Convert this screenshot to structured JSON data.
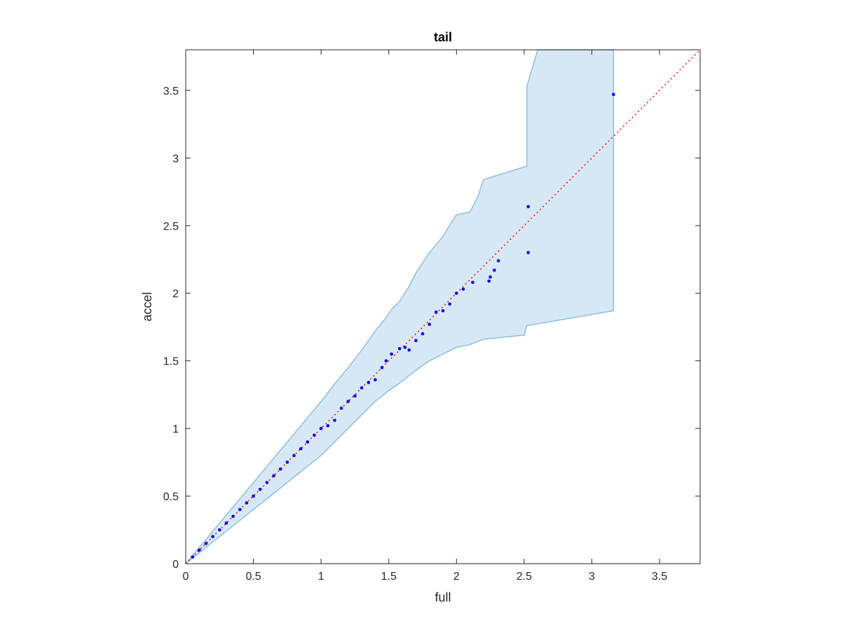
{
  "chart_data": {
    "type": "scatter",
    "title": "tail",
    "xlabel": "full",
    "ylabel": "accel",
    "xlim": [
      0,
      3.8
    ],
    "ylim": [
      0,
      3.8
    ],
    "xticks": [
      0,
      0.5,
      1,
      1.5,
      2,
      2.5,
      3,
      3.5
    ],
    "yticks": [
      0,
      0.5,
      1,
      1.5,
      2,
      2.5,
      3,
      3.5
    ],
    "xtick_labels": [
      "0",
      "0.5",
      "1",
      "1.5",
      "2",
      "2.5",
      "3",
      "3.5"
    ],
    "ytick_labels": [
      "0",
      "0.5",
      "1",
      "1.5",
      "2",
      "2.5",
      "3",
      "3.5"
    ],
    "grid": false,
    "colors": {
      "points": "#0000ff",
      "reference_line": "#ff0000",
      "band_fill": "#d6e8f5",
      "band_edge": "#8ebfdd"
    },
    "reference_line": {
      "x": [
        0,
        3.8
      ],
      "y": [
        0,
        3.8
      ],
      "style": "dotted"
    },
    "band_upper": [
      [
        0,
        0
      ],
      [
        0.1,
        0.12
      ],
      [
        0.2,
        0.24
      ],
      [
        0.3,
        0.36
      ],
      [
        0.4,
        0.48
      ],
      [
        0.5,
        0.6
      ],
      [
        0.6,
        0.72
      ],
      [
        0.7,
        0.84
      ],
      [
        0.8,
        0.96
      ],
      [
        0.9,
        1.08
      ],
      [
        1.0,
        1.2
      ],
      [
        1.1,
        1.33
      ],
      [
        1.2,
        1.45
      ],
      [
        1.3,
        1.58
      ],
      [
        1.4,
        1.72
      ],
      [
        1.48,
        1.82
      ],
      [
        1.52,
        1.88
      ],
      [
        1.58,
        1.94
      ],
      [
        1.65,
        2.05
      ],
      [
        1.7,
        2.15
      ],
      [
        1.8,
        2.3
      ],
      [
        1.9,
        2.42
      ],
      [
        1.96,
        2.52
      ],
      [
        2.0,
        2.58
      ],
      [
        2.1,
        2.6
      ],
      [
        2.16,
        2.72
      ],
      [
        2.2,
        2.84
      ],
      [
        2.52,
        2.94
      ],
      [
        2.52,
        3.53
      ],
      [
        2.6,
        3.8
      ],
      [
        3.16,
        3.8
      ]
    ],
    "band_lower": [
      [
        0,
        0
      ],
      [
        0.1,
        0.08
      ],
      [
        0.2,
        0.16
      ],
      [
        0.3,
        0.24
      ],
      [
        0.4,
        0.32
      ],
      [
        0.5,
        0.4
      ],
      [
        0.6,
        0.48
      ],
      [
        0.7,
        0.56
      ],
      [
        0.8,
        0.64
      ],
      [
        0.9,
        0.72
      ],
      [
        1.0,
        0.8
      ],
      [
        1.1,
        0.9
      ],
      [
        1.2,
        1.0
      ],
      [
        1.3,
        1.1
      ],
      [
        1.4,
        1.2
      ],
      [
        1.5,
        1.28
      ],
      [
        1.6,
        1.35
      ],
      [
        1.7,
        1.43
      ],
      [
        1.8,
        1.5
      ],
      [
        1.9,
        1.55
      ],
      [
        2.0,
        1.6
      ],
      [
        2.1,
        1.62
      ],
      [
        2.2,
        1.66
      ],
      [
        2.5,
        1.69
      ],
      [
        2.52,
        1.76
      ],
      [
        3.16,
        1.87
      ]
    ],
    "points": [
      [
        0.05,
        0.05
      ],
      [
        0.1,
        0.1
      ],
      [
        0.15,
        0.15
      ],
      [
        0.2,
        0.2
      ],
      [
        0.25,
        0.25
      ],
      [
        0.3,
        0.3
      ],
      [
        0.35,
        0.35
      ],
      [
        0.4,
        0.4
      ],
      [
        0.45,
        0.45
      ],
      [
        0.5,
        0.5
      ],
      [
        0.55,
        0.55
      ],
      [
        0.6,
        0.6
      ],
      [
        0.65,
        0.65
      ],
      [
        0.7,
        0.7
      ],
      [
        0.75,
        0.75
      ],
      [
        0.8,
        0.8
      ],
      [
        0.85,
        0.85
      ],
      [
        0.9,
        0.9
      ],
      [
        0.95,
        0.95
      ],
      [
        1.0,
        1.0
      ],
      [
        1.05,
        1.02
      ],
      [
        1.1,
        1.06
      ],
      [
        1.15,
        1.15
      ],
      [
        1.2,
        1.2
      ],
      [
        1.25,
        1.24
      ],
      [
        1.3,
        1.3
      ],
      [
        1.35,
        1.34
      ],
      [
        1.4,
        1.36
      ],
      [
        1.45,
        1.45
      ],
      [
        1.48,
        1.5
      ],
      [
        1.52,
        1.55
      ],
      [
        1.58,
        1.59
      ],
      [
        1.62,
        1.6
      ],
      [
        1.65,
        1.58
      ],
      [
        1.7,
        1.65
      ],
      [
        1.75,
        1.7
      ],
      [
        1.8,
        1.77
      ],
      [
        1.85,
        1.86
      ],
      [
        1.9,
        1.87
      ],
      [
        1.95,
        1.92
      ],
      [
        2.0,
        2.0
      ],
      [
        2.05,
        2.03
      ],
      [
        2.12,
        2.08
      ],
      [
        2.24,
        2.09
      ],
      [
        2.25,
        2.12
      ],
      [
        2.28,
        2.17
      ],
      [
        2.31,
        2.24
      ],
      [
        2.53,
        2.64
      ],
      [
        2.53,
        2.3
      ],
      [
        3.16,
        3.47
      ]
    ]
  }
}
